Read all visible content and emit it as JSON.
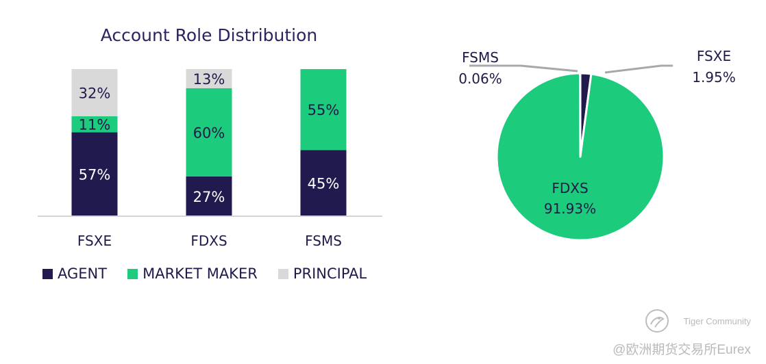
{
  "chart_data": [
    {
      "type": "bar",
      "stacked": true,
      "title": "Account Role Distribution",
      "categories": [
        "FSXE",
        "FDXS",
        "FSMS"
      ],
      "series": [
        {
          "name": "AGENT",
          "values": [
            57,
            27,
            45
          ],
          "labels": [
            "57%",
            "27%",
            "45%"
          ],
          "color": "#201a4e"
        },
        {
          "name": "MARKET MAKER",
          "values": [
            11,
            60,
            55
          ],
          "labels": [
            "11%",
            "60%",
            "55%"
          ],
          "color": "#1ccb7c"
        },
        {
          "name": "PRINCIPAL",
          "values": [
            32,
            13,
            0
          ],
          "labels": [
            "32%",
            "13%",
            ""
          ],
          "color": "#d9d9d9"
        }
      ],
      "ylim": [
        0,
        100
      ],
      "legend_position": "bottom-left",
      "grid": false
    },
    {
      "type": "pie",
      "slices": [
        {
          "name": "FSXE",
          "value": 1.95,
          "label": "1.95%",
          "color": "#201a4e"
        },
        {
          "name": "FDXS",
          "value": 91.93,
          "label": "91.93%",
          "color": "#1ccb7c"
        },
        {
          "name": "FSMS",
          "value": 0.06,
          "label": "0.06%",
          "color": "#d9d9d9"
        }
      ]
    }
  ],
  "watermark": {
    "brand": "Tiger Community",
    "handle": "@欧洲期货交易所Eurex",
    "logo_icon": "tiger-community-logo-icon"
  }
}
